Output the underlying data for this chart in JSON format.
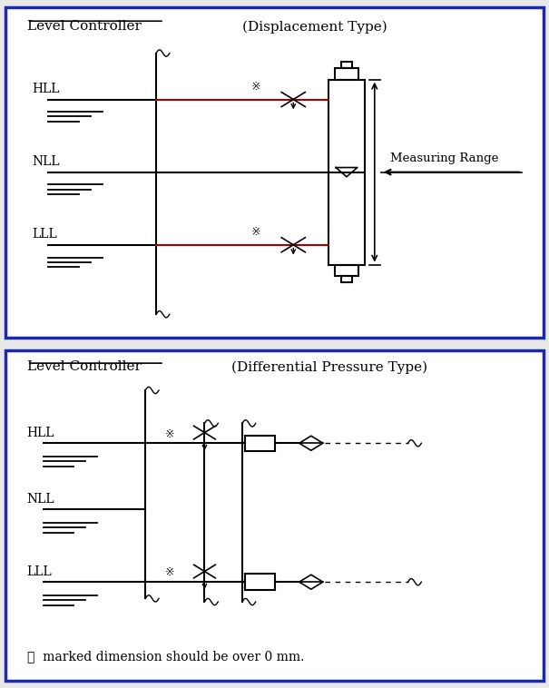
{
  "bg_color": "#e8e8e8",
  "panel_bg": "#ffffff",
  "border_color": "#1a2aaa",
  "line_color": "#000000",
  "red_line_color": "#aa0000",
  "title1": "Level Controller",
  "subtitle1": "(Displacement Type)",
  "title2": "Level Controller",
  "subtitle2": "(Differential Pressure Type)",
  "footnote": "※  marked dimension should be over 0 mm.",
  "measuring_range_label": "Measuring Range"
}
